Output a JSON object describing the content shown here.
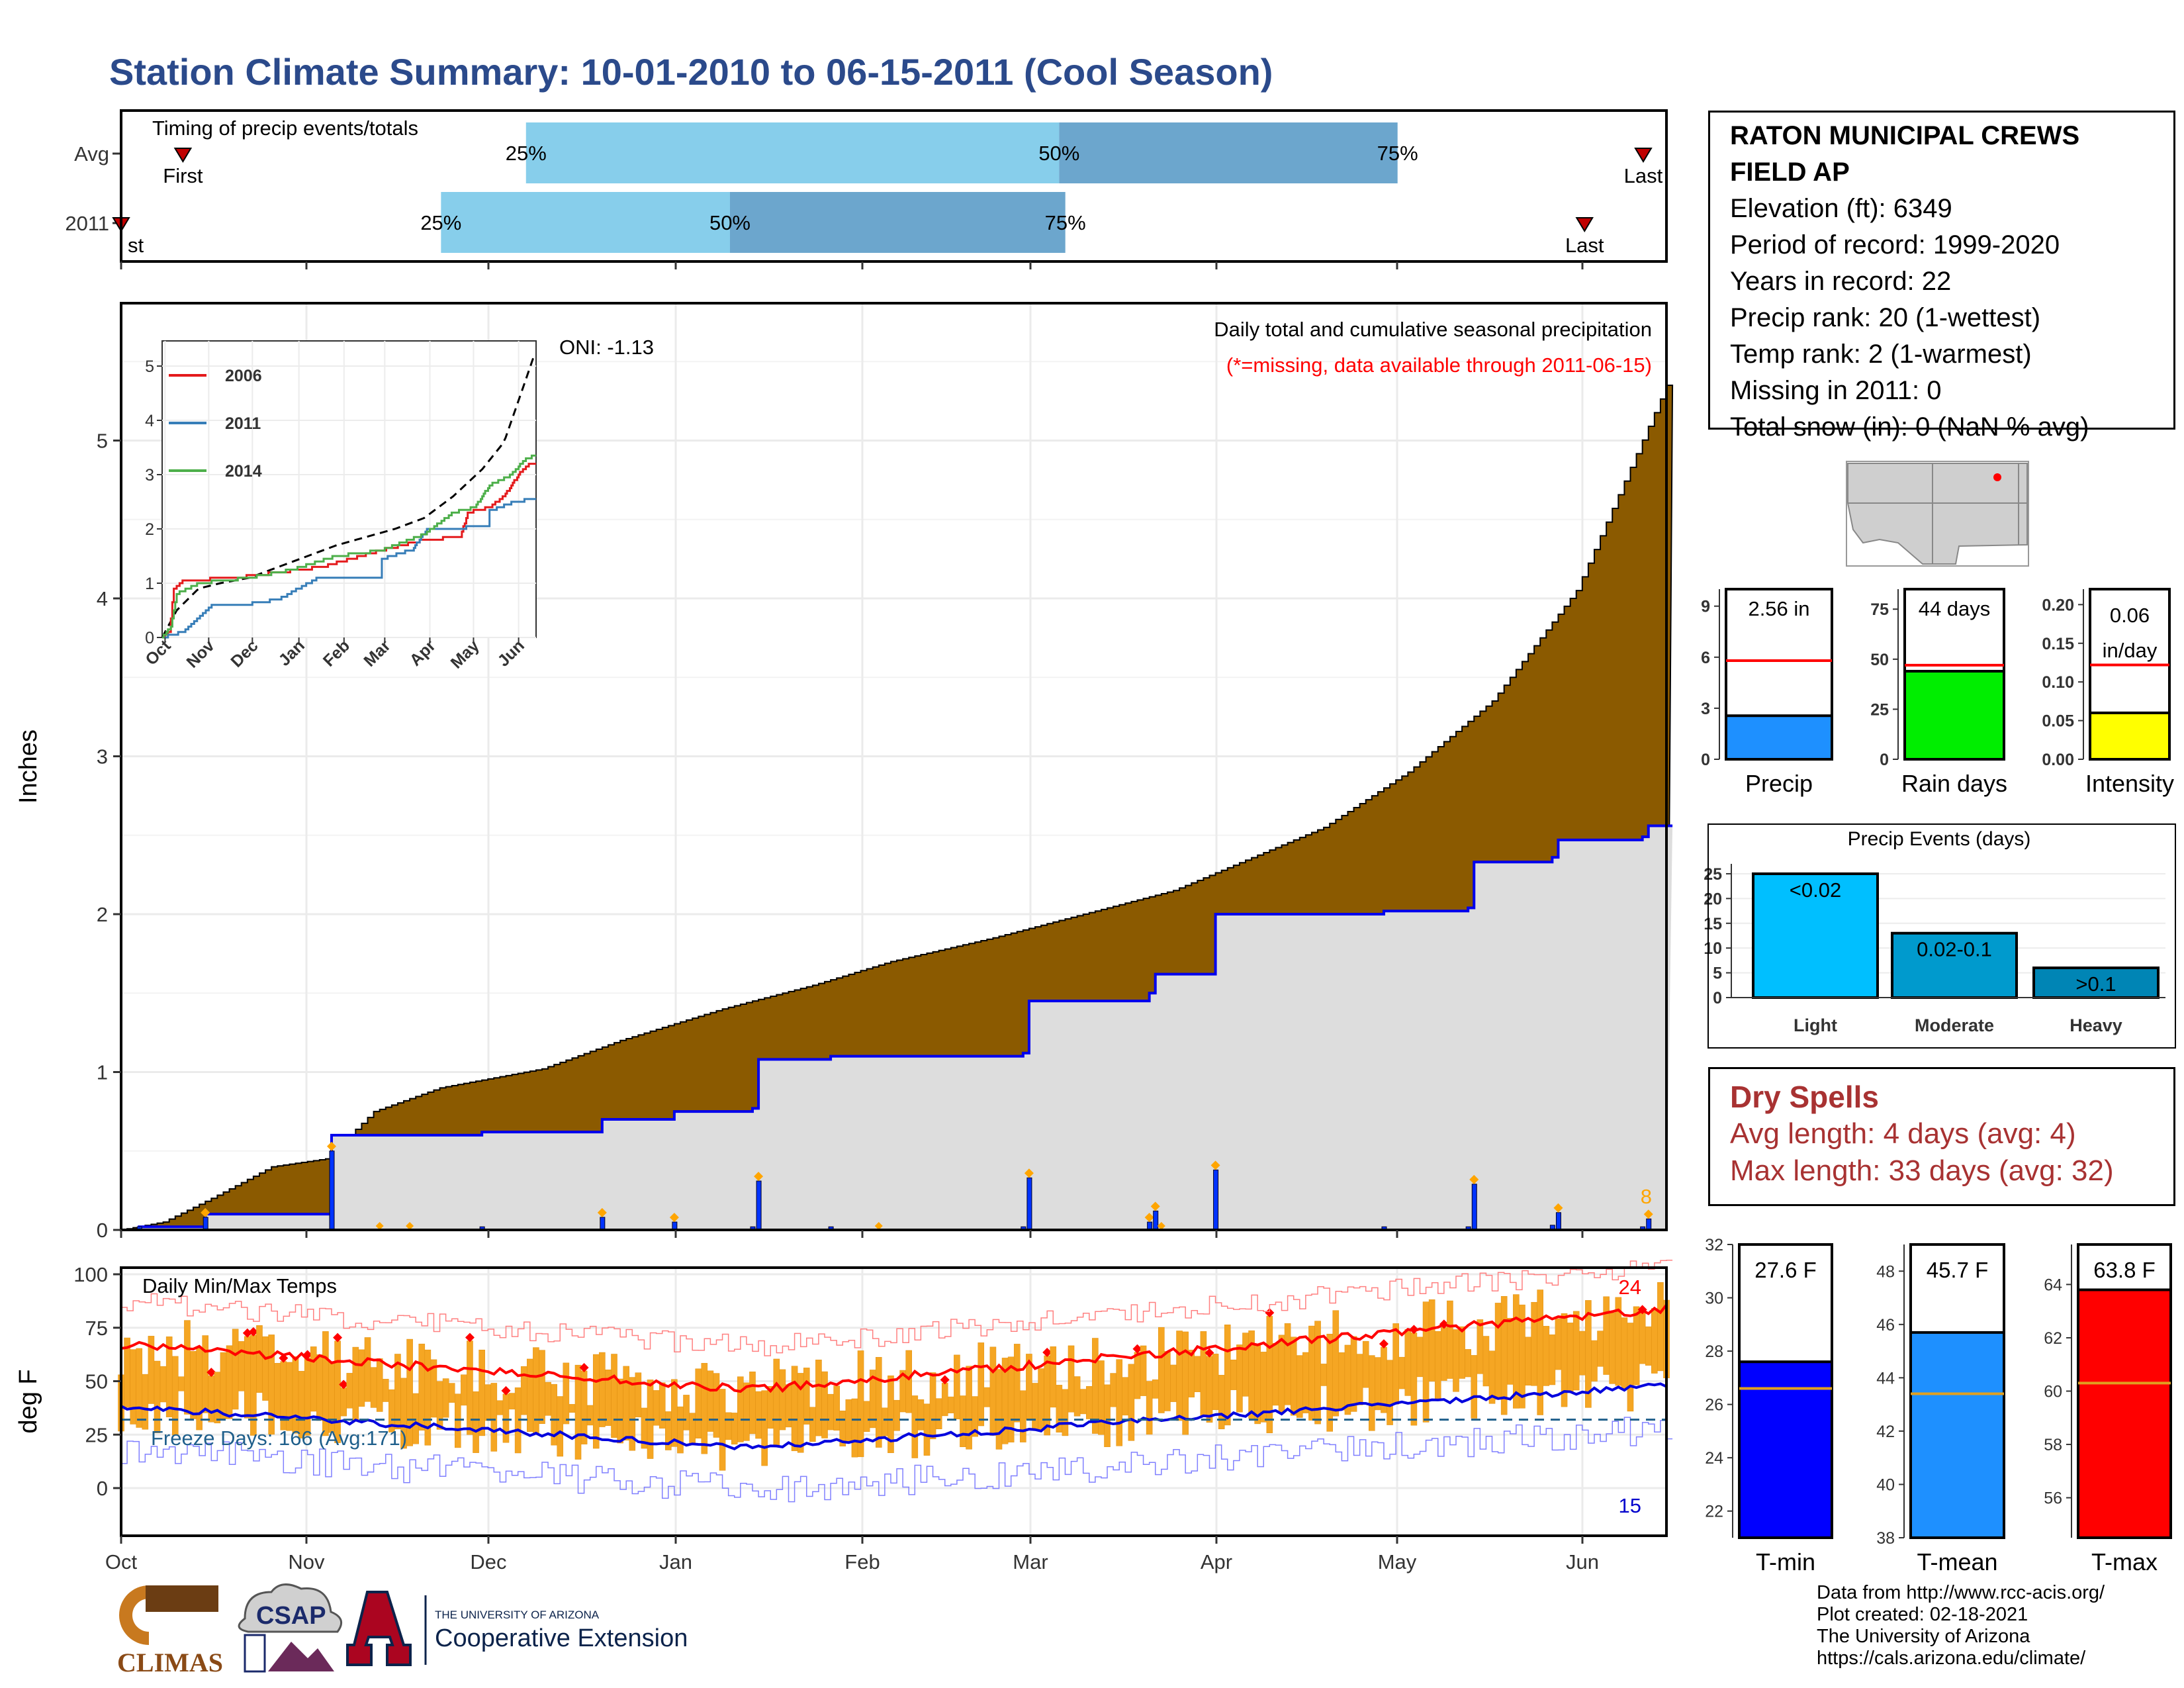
{
  "title": "Station Climate Summary: 10-01-2010 to 06-15-2011 (Cool Season)",
  "timing_panel": {
    "label": "Timing of precip events/totals",
    "rows": [
      {
        "name": "Avg",
        "first_label": "First",
        "last_label": "Last",
        "first": 0.04,
        "last": 0.985,
        "q25": 0.262,
        "q50": 0.607,
        "q75": 0.826,
        "pct_labels": [
          "25%",
          "50%",
          "75%"
        ]
      },
      {
        "name": "2011",
        "first_label": "First",
        "last_label": "Last",
        "first": 0.0,
        "last": 0.947,
        "q25": 0.207,
        "q50": 0.394,
        "q75": 0.611,
        "pct_labels": [
          "25%",
          "50%",
          "75%"
        ]
      }
    ]
  },
  "precip_panel": {
    "ylabel": "Inches",
    "yticks": [
      0,
      1,
      2,
      3,
      4,
      5
    ],
    "oni_label": "ONI: -1.13",
    "header": "Daily total and cumulative seasonal precipitation",
    "missing_note": "(*=missing, data available through 2011-06-15)",
    "count_label": "8",
    "colors": {
      "avg_fill": "#8b5a00",
      "obs_fill": "#dddddd",
      "obs_line": "#0000ee",
      "daily_bar": "#0033ff",
      "marker": "orange"
    }
  },
  "inset": {
    "yticks": [
      0,
      1,
      2,
      3,
      4,
      5
    ],
    "months": [
      "Oct",
      "Nov",
      "Dec",
      "Jan",
      "Feb",
      "Mar",
      "Apr",
      "May",
      "Jun"
    ],
    "legend": [
      {
        "name": "2006",
        "color": "#e41a1c"
      },
      {
        "name": "2011",
        "color": "#377eb8"
      },
      {
        "name": "2014",
        "color": "#4daf4a"
      }
    ]
  },
  "temp_panel": {
    "ylabel": "deg F",
    "yticks": [
      0,
      25,
      50,
      75,
      100
    ],
    "label": "Daily Min/Max Temps",
    "freeze_label": "Freeze Days: 166 (Avg:171)",
    "hot_count": "24",
    "cold_count": "15"
  },
  "months": [
    "Oct",
    "Nov",
    "Dec",
    "Jan",
    "Feb",
    "Mar",
    "Apr",
    "May",
    "Jun"
  ],
  "station": {
    "name_line1": "RATON MUNICIPAL CREWS",
    "name_line2": "FIELD AP",
    "lines": [
      "Elevation (ft): 6349",
      "Period of record: 1999-2020",
      "Years in record: 22",
      "Precip rank: 20 (1-wettest)",
      "Temp rank: 2 (1-warmest)",
      "Missing in 2011: 0",
      "Total snow (in): 0 (NaN % avg)"
    ]
  },
  "summary_bars": [
    {
      "name": "Precip",
      "value": 2.56,
      "avg": 5.8,
      "ylim": [
        0,
        10
      ],
      "yticks": [
        0,
        3,
        6,
        9
      ],
      "top_label": "2.56 in",
      "color": "#1e90ff"
    },
    {
      "name": "Rain days",
      "value": 44,
      "avg": 47,
      "ylim": [
        0,
        85
      ],
      "yticks": [
        0,
        25,
        50,
        75
      ],
      "top_label": "44 days",
      "color": "#00ee00"
    },
    {
      "name": "Intensity",
      "value": 0.06,
      "avg": 0.122,
      "ylim": [
        0,
        0.22
      ],
      "yticks": [
        "0.00",
        "0.05",
        "0.10",
        "0.15",
        "0.20"
      ],
      "top_label": "0.06",
      "top_label2": "in/day",
      "color": "#ffff00"
    }
  ],
  "precip_events": {
    "title": "Precip Events (days)",
    "yticks": [
      0,
      5,
      10,
      15,
      20,
      25
    ],
    "categories": [
      "Light",
      "Moderate",
      "Heavy"
    ],
    "bar_labels": [
      "<0.02",
      "0.02-0.1",
      ">0.1"
    ],
    "values": [
      25,
      13,
      6
    ],
    "colors": [
      "#00bfff",
      "#009acd",
      "#0085b5"
    ]
  },
  "dry_spells": {
    "title": "Dry Spells",
    "avg_line": "Avg length: 4 days (avg: 4)",
    "max_line": "Max length: 33 days (avg: 32)"
  },
  "temp_bars": [
    {
      "name": "T-min",
      "value": 27.6,
      "avg": 26.6,
      "ylim": [
        21,
        32
      ],
      "yticks": [
        22,
        24,
        26,
        28,
        30,
        32
      ],
      "top_label": "27.6 F",
      "color": "#0000ff"
    },
    {
      "name": "T-mean",
      "value": 45.7,
      "avg": 43.4,
      "ylim": [
        38,
        49
      ],
      "yticks": [
        38,
        40,
        42,
        44,
        46,
        48
      ],
      "top_label": "45.7 F",
      "color": "#1e90ff"
    },
    {
      "name": "T-max",
      "value": 63.8,
      "avg": 60.3,
      "ylim": [
        54.5,
        65.5
      ],
      "yticks": [
        56,
        58,
        60,
        62,
        64
      ],
      "top_label": "63.8 F",
      "color": "#ff0000"
    }
  ],
  "credits": [
    "Data from http://www.rcc-acis.org/",
    "Plot created: 02-18-2021",
    "The University of Arizona",
    "https://cals.arizona.edu/climate/"
  ],
  "logos": {
    "climas": "CLIMAS",
    "csap": "CSAP",
    "ua_top": "THE UNIVERSITY OF ARIZONA",
    "ua_bottom": "Cooperative Extension"
  }
}
